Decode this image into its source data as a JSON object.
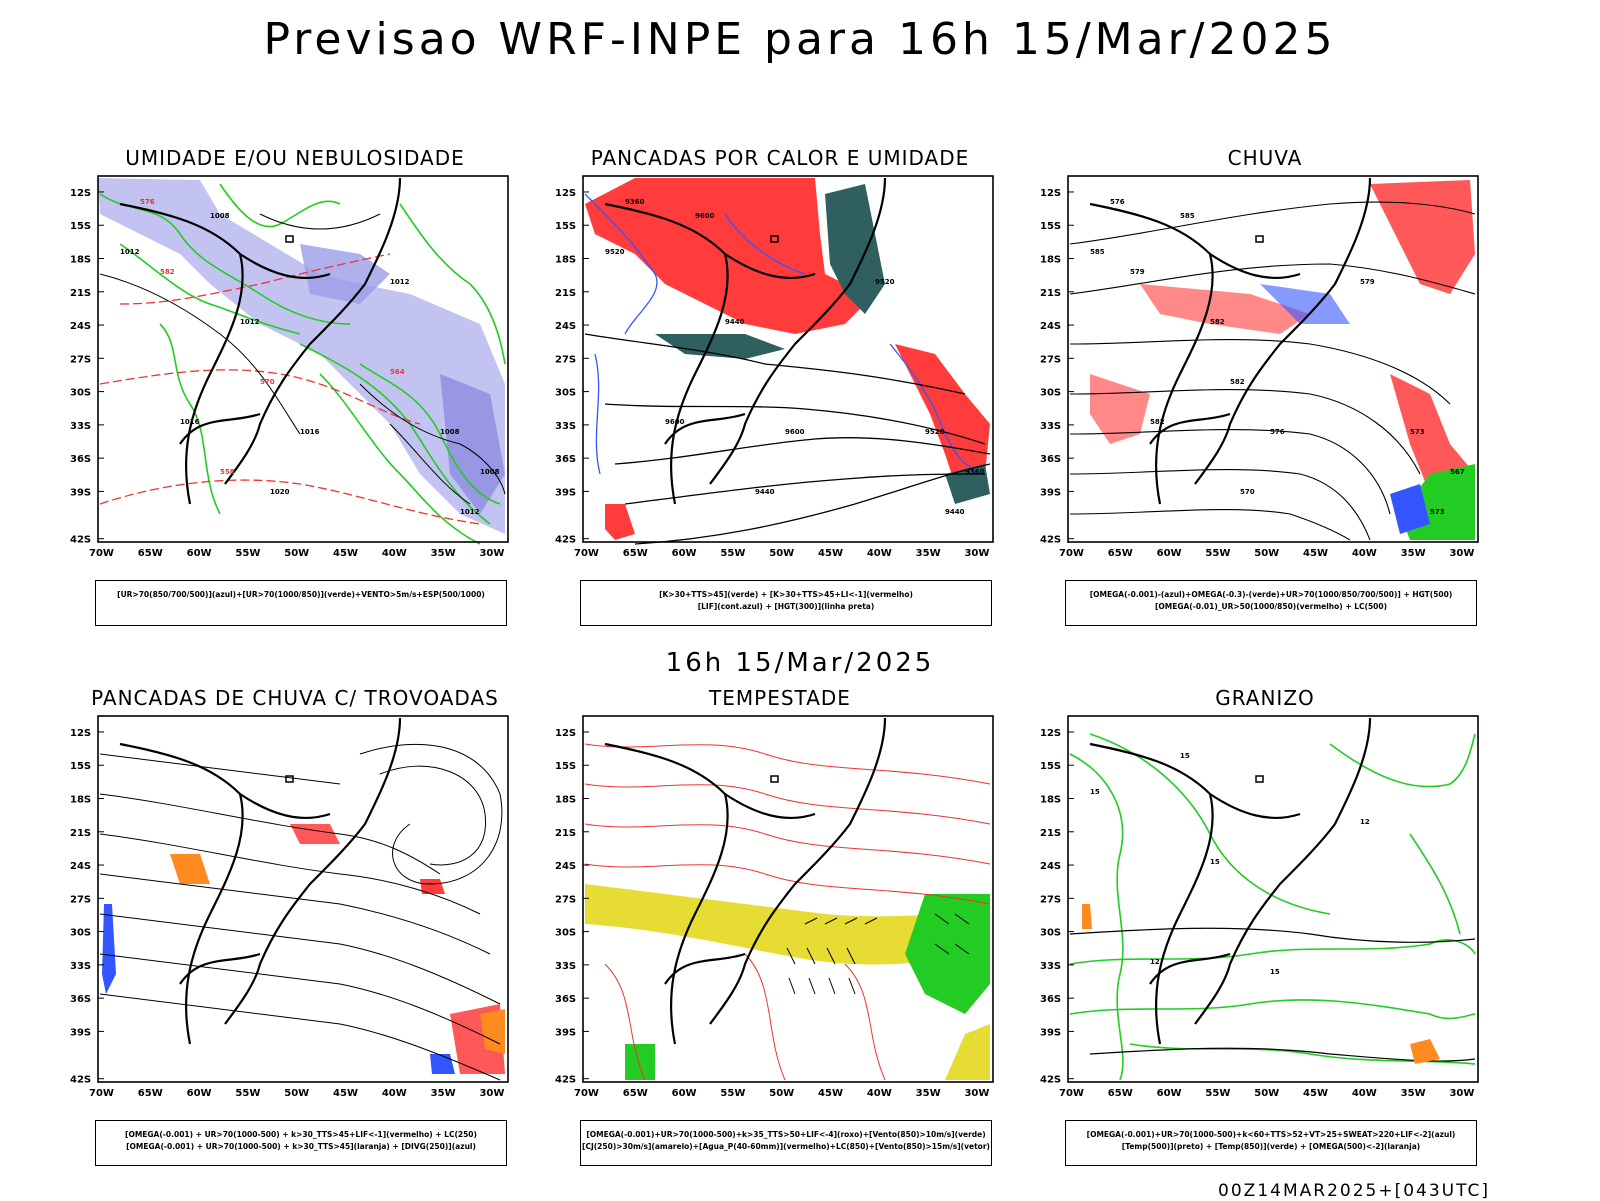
{
  "header": {
    "title": "Previsao WRF-INPE  para 16h 15/Mar/2025"
  },
  "middle": {
    "title": "16h 15/Mar/2025"
  },
  "footer": {
    "run": "00Z14MAR2025+[043UTC]"
  },
  "axes": {
    "lat_ticks": [
      "12S",
      "15S",
      "18S",
      "21S",
      "24S",
      "27S",
      "30S",
      "33S",
      "36S",
      "39S",
      "42S"
    ],
    "lon_ticks": [
      "70W",
      "65W",
      "60W",
      "55W",
      "50W",
      "45W",
      "40W",
      "35W",
      "30W"
    ]
  },
  "panels": [
    {
      "title": "UMIDADE E/OU NEBULOSIDADE",
      "legend": [
        "[UR>70(850/700/500)](azul)+[UR>70(1000/850)](verde)+VENTO>5m/s+ESP(500/1000)"
      ],
      "contour_labels": [
        "1008",
        "1012",
        "1012",
        "1016",
        "1012",
        "1016",
        "1008",
        "1020",
        "1008",
        "1012",
        "576",
        "582",
        "570",
        "564",
        "558"
      ]
    },
    {
      "title": "PANCADAS POR CALOR E UMIDADE",
      "legend": [
        "[K>30+TTS>45](verde) + [K>30+TTS>45+LI<-1](vermelho)",
        "[LIF](cont.azul) + [HGT(300)](linha preta)"
      ],
      "contour_labels": [
        "9600",
        "9520",
        "9440",
        "9600",
        "9520",
        "9600",
        "9520",
        "9440",
        "9360",
        "9440",
        "9360"
      ]
    },
    {
      "title": "CHUVA",
      "legend": [
        "[OMEGA(-0.001)-(azul)+OMEGA(-0.3)-(verde)+UR>70(1000/850/700/500)] + HGT(500)",
        "[OMEGA(-0.01)_UR>50(1000/850)(vermelho) + LC(500)"
      ],
      "contour_labels": [
        "585",
        "585",
        "582",
        "582",
        "579",
        "576",
        "573",
        "570",
        "567",
        "573",
        "576",
        "579",
        "582"
      ]
    },
    {
      "title": "PANCADAS DE CHUVA C/ TROVOADAS",
      "legend": [
        "[OMEGA(-0.001) + UR>70(1000-500) + k>30_TTS>45+LIF<-1](vermelho) + LC(250)",
        "[OMEGA(-0.001) + UR>70(1000-500) + k>30_TTS>45](laranja) + [DIVG(250)](azul)"
      ],
      "contour_labels": []
    },
    {
      "title": "TEMPESTADE",
      "legend": [
        "[OMEGA(-0.001)+UR>70(1000-500)+k>35_TTS>50+LIF<-4](roxo)+[Vento(850)>10m/s](verde)",
        "[CJ(250)>30m/s](amarelo)+[Agua_P(40-60mm)](vermelho)+LC(850)+[Vento(850)>15m/s](vetor)"
      ],
      "contour_labels": []
    },
    {
      "title": "GRANIZO",
      "legend": [
        "[OMEGA(-0.001)+UR>70(1000-500)+k<60+TTS>52+VT>25+SWEAT>220+LIF<-2](azul)",
        "[Temp(500)](preto) + [Temp(850)](verde) + [OMEGA(500)<-2](laranja)"
      ],
      "contour_labels": [
        "15",
        "15",
        "15",
        "12",
        "12",
        "15"
      ]
    }
  ],
  "colors": {
    "blue_area": "#aaaaee",
    "green_line": "#22cc22",
    "red_line": "#ee3333",
    "red_fill": "#ff3b3b",
    "teal_fill": "#2f5f5f",
    "blue_line": "#3355ff",
    "yellow_fill": "#e6dc33",
    "green_fill": "#22cc22",
    "orange_fill": "#ff8a1f"
  }
}
